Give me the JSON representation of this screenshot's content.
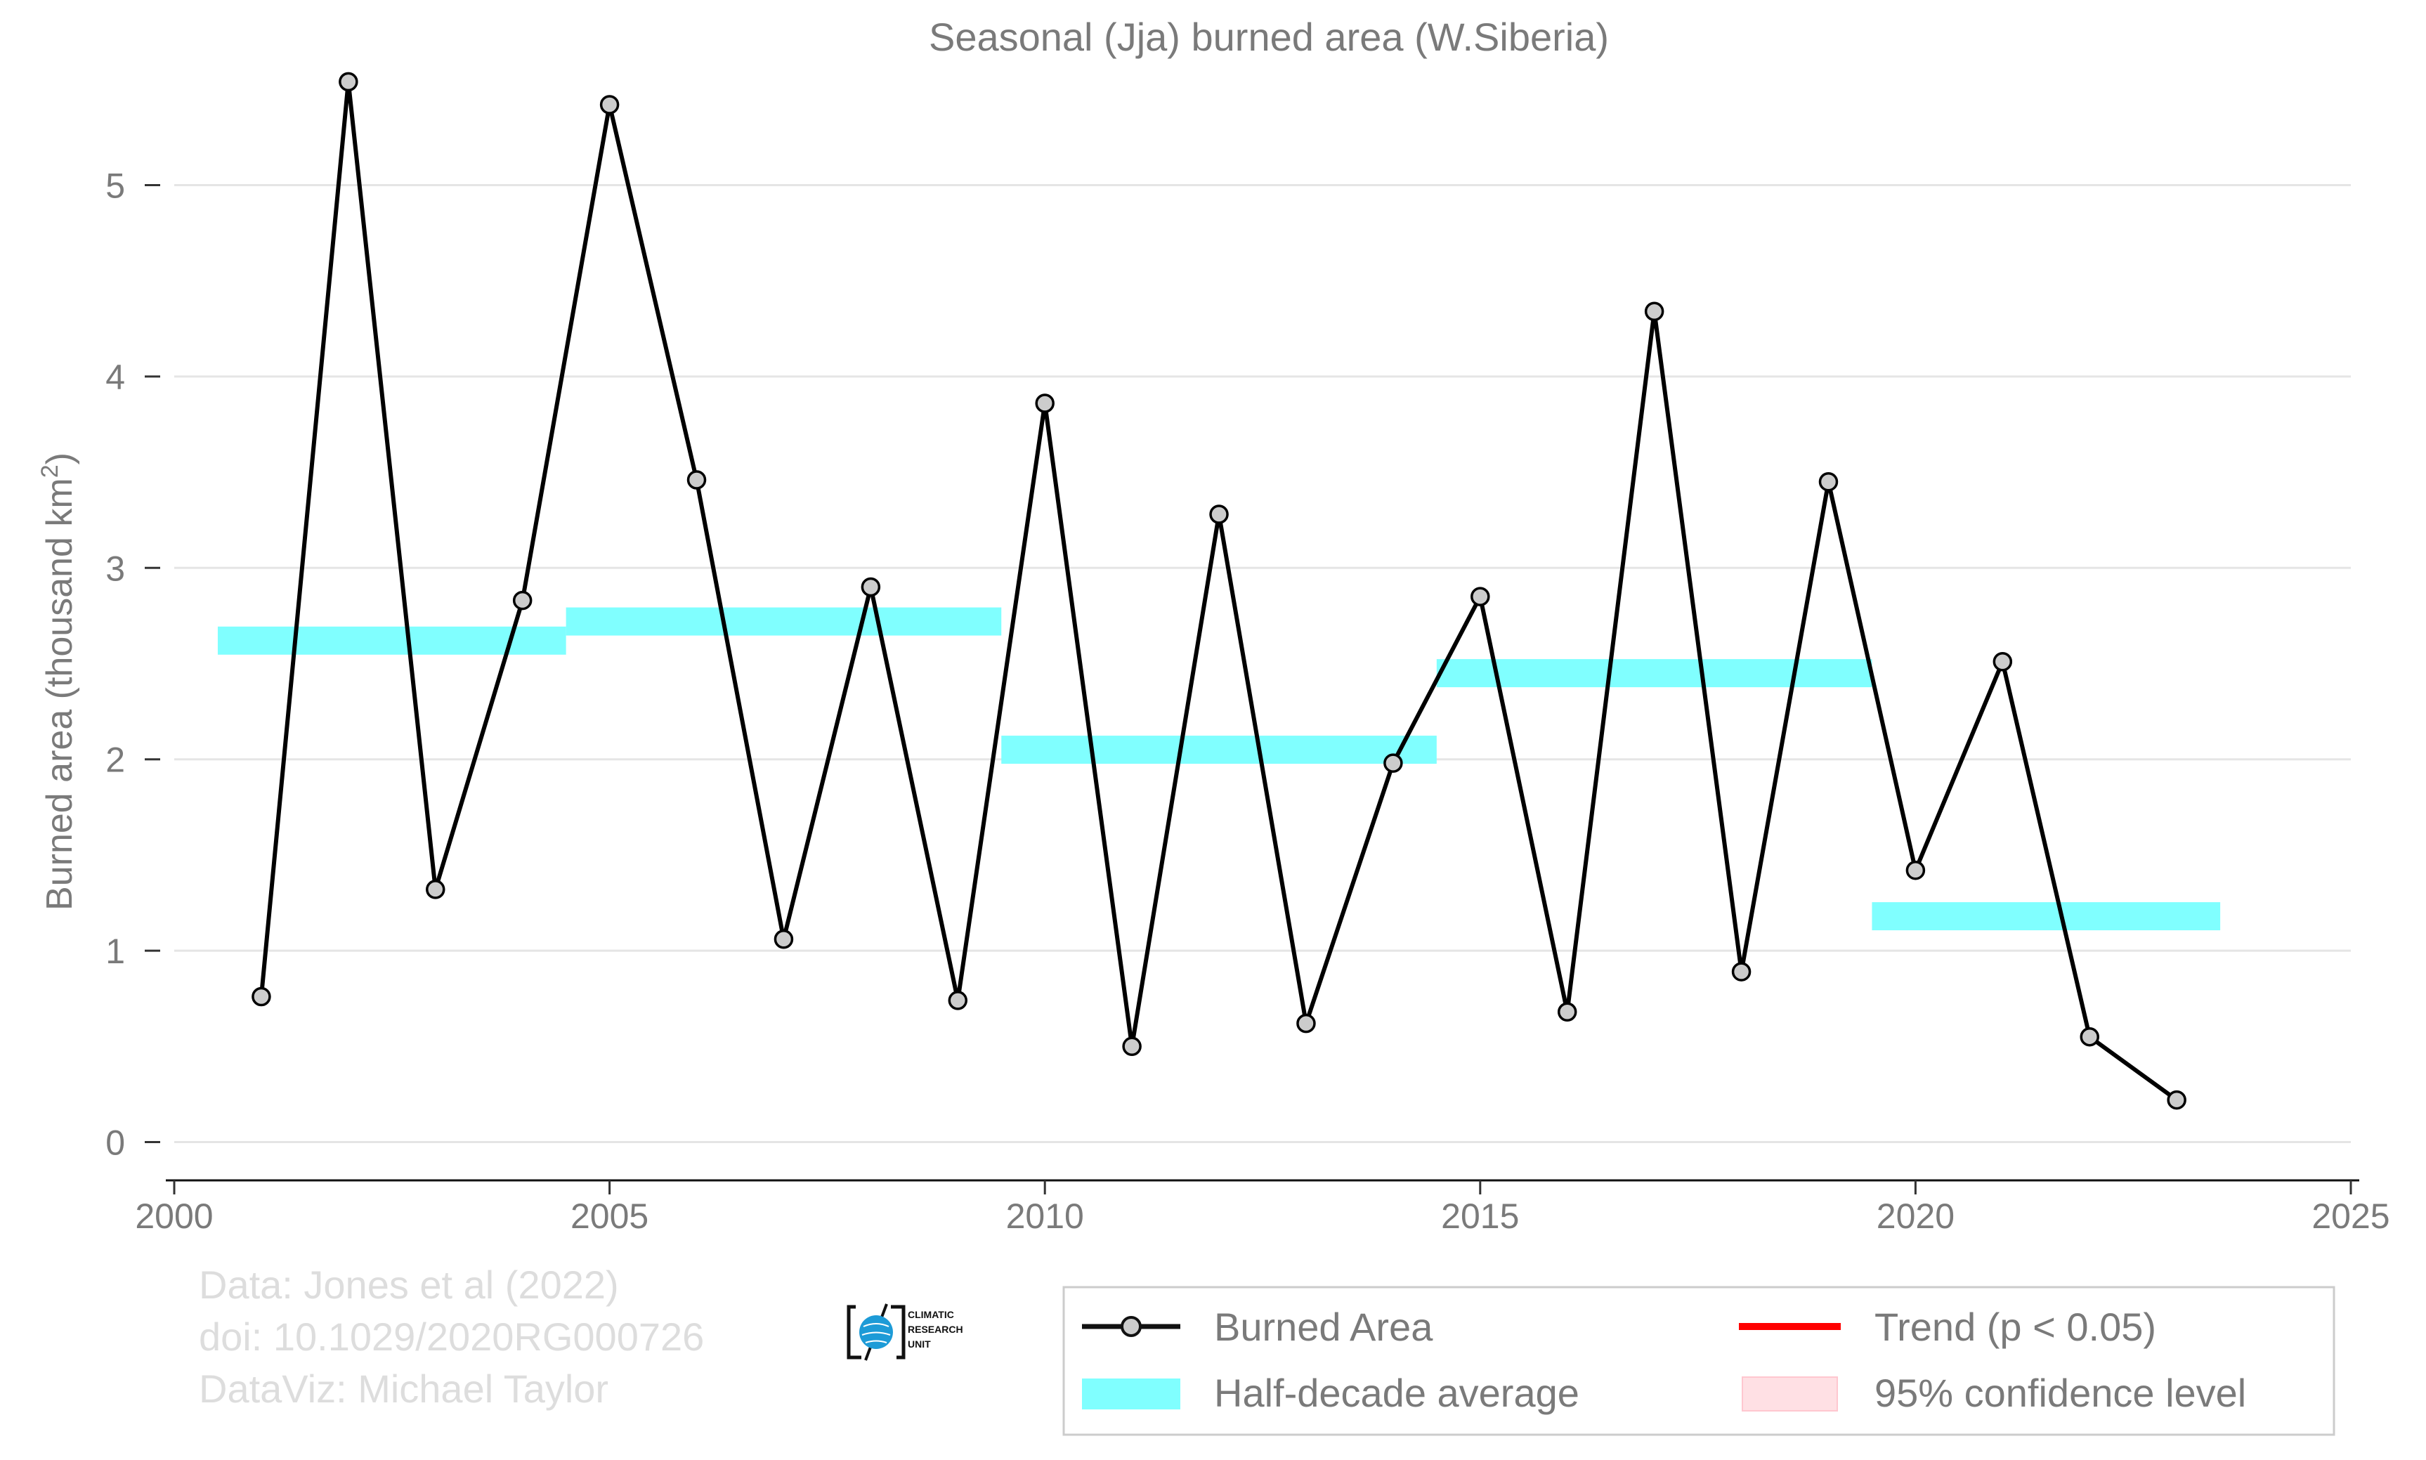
{
  "chart_data": {
    "type": "line",
    "title": "Seasonal (Jja) burned area (W.Siberia)",
    "ylabel": "Burned area (thousand km",
    "ylabel_superscript": "2",
    "ylabel_suffix": ")",
    "xlabel": "",
    "xlim": [
      2000,
      2025
    ],
    "ylim": [
      -0.2,
      5.6
    ],
    "x_ticks": [
      2000,
      2005,
      2010,
      2015,
      2020,
      2025
    ],
    "y_ticks": [
      0,
      1,
      2,
      3,
      4,
      5
    ],
    "grid": "horizontal",
    "legend_position": "bottom-right",
    "series": [
      {
        "name": "Burned Area",
        "color": "#000000",
        "marker_fill": "#cccccc",
        "x": [
          2001,
          2002,
          2003,
          2004,
          2005,
          2006,
          2007,
          2008,
          2009,
          2010,
          2011,
          2012,
          2013,
          2014,
          2015,
          2016,
          2017,
          2018,
          2019,
          2020,
          2021,
          2022,
          2023
        ],
        "y": [
          0.76,
          5.54,
          1.32,
          2.83,
          5.42,
          3.46,
          1.06,
          2.9,
          0.74,
          3.86,
          0.5,
          3.28,
          0.62,
          1.98,
          2.85,
          0.68,
          4.34,
          0.89,
          3.45,
          1.42,
          2.51,
          0.55,
          0.22
        ]
      },
      {
        "name": "Half-decade average",
        "color": "#80ffff",
        "segments": [
          {
            "x_start": 2000.5,
            "x_end": 2004.5,
            "y": 2.62
          },
          {
            "x_start": 2004.5,
            "x_end": 2009.5,
            "y": 2.72
          },
          {
            "x_start": 2009.5,
            "x_end": 2014.5,
            "y": 2.05
          },
          {
            "x_start": 2014.5,
            "x_end": 2019.5,
            "y": 2.45
          },
          {
            "x_start": 2019.5,
            "x_end": 2023.5,
            "y": 1.18
          }
        ]
      }
    ],
    "legend": [
      {
        "label": "Burned Area",
        "kind": "line-marker",
        "color": "#000000"
      },
      {
        "label": "Trend (p < 0.05)",
        "kind": "line",
        "color": "#ff0000"
      },
      {
        "label": "Half-decade average",
        "kind": "band",
        "color": "#80ffff"
      },
      {
        "label": "95% confidence level",
        "kind": "box",
        "color": "#ffe0e4"
      }
    ]
  },
  "credits": {
    "line1": "Data: Jones et al (2022)",
    "line2": "doi: 10.1029/2020RG000726",
    "line3": "DataViz: Michael Taylor"
  },
  "logo": {
    "line1": "CLIMATIC",
    "line2": "RESEARCH",
    "line3": "UNIT",
    "accent_color": "#1d9bd7"
  }
}
